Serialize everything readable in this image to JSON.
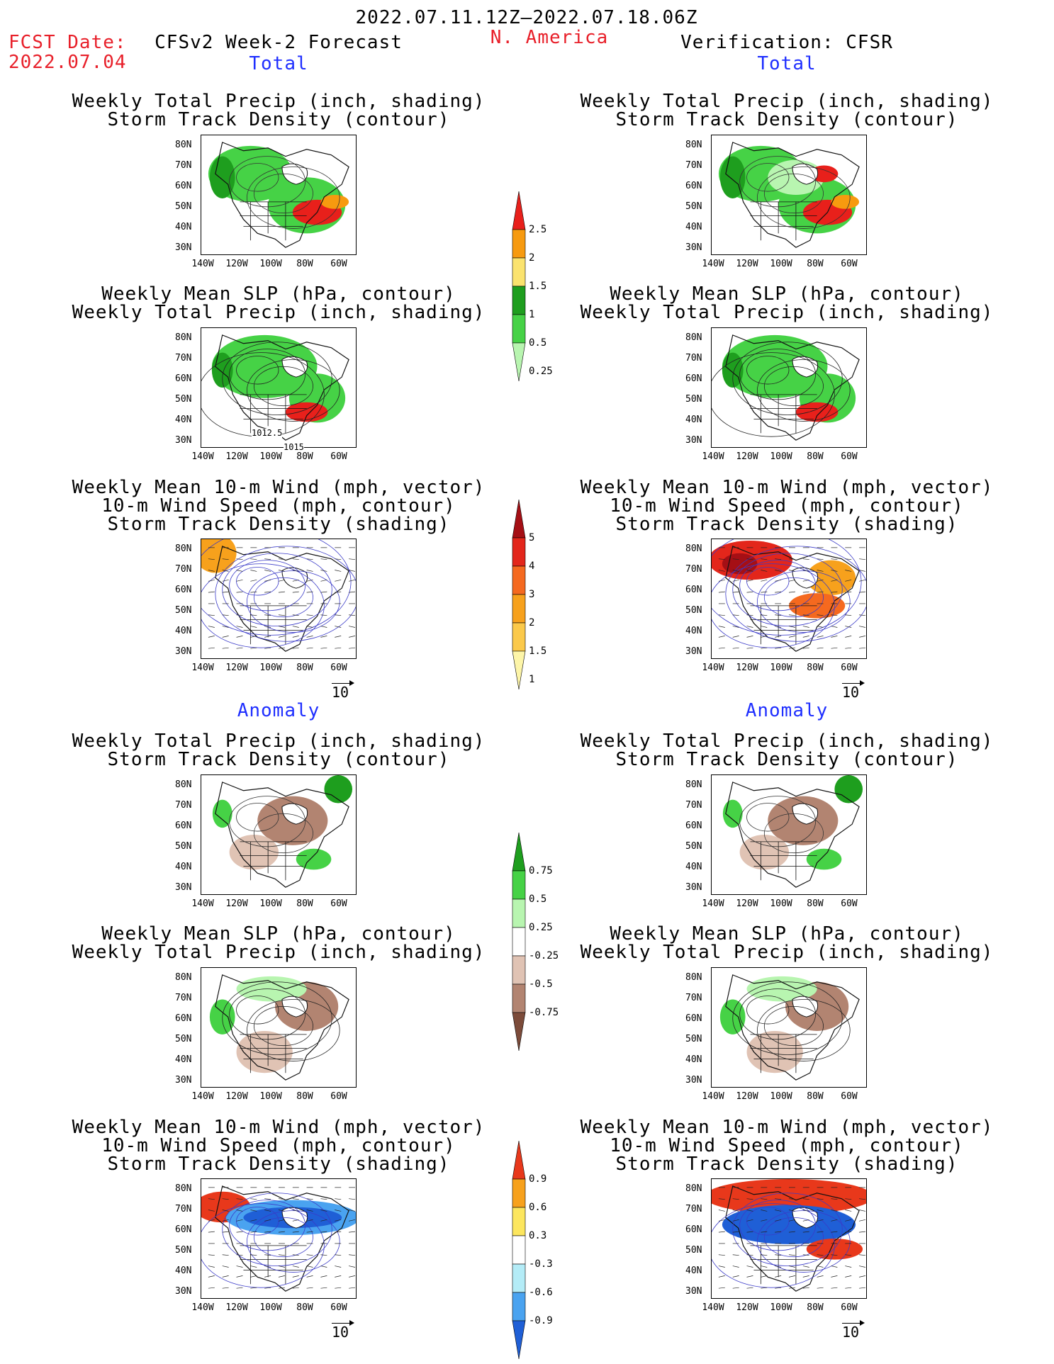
{
  "header": {
    "date_range": "2022.07.11.12Z–2022.07.18.06Z",
    "fcst_label": "FCST Date:",
    "fcst_date": "2022.07.04",
    "forecast_title": "CFSv2 Week-2 Forecast",
    "region": "N. America",
    "verification_title": "Verification: CFSR"
  },
  "sections": {
    "total": "Total",
    "anomaly": "Anomaly"
  },
  "panel_titles": {
    "precip_storm": [
      "Weekly Total Precip (inch, shading)",
      "Storm Track Density (contour)"
    ],
    "slp_precip": [
      "Weekly Mean SLP (hPa, contour)",
      "Weekly Total Precip (inch, shading)"
    ],
    "wind_storm": [
      "Weekly Mean 10-m Wind (mph, vector)",
      "10-m Wind Speed (mph, contour)",
      "Storm Track Density (shading)"
    ]
  },
  "axes": {
    "lat_labels": [
      "80N",
      "70N",
      "60N",
      "50N",
      "40N",
      "30N"
    ],
    "lon_labels": [
      "140W",
      "120W",
      "100W",
      "80W",
      "60W"
    ]
  },
  "vector_ref": "10",
  "contour_labels": {
    "slp_1": "1012.5",
    "slp_2": "1015"
  },
  "colorbars": {
    "precip_total": {
      "labels": [
        "2.5",
        "2",
        "1.5",
        "1",
        "0.5",
        "0.25"
      ],
      "colors": [
        "#e8201b",
        "#f79a0f",
        "#fbe36e",
        "#1e9e1e",
        "#46d246",
        "#b8f5b0"
      ]
    },
    "storm_total": {
      "labels": [
        "5",
        "4",
        "3",
        "2",
        "1.5",
        "1"
      ],
      "colors": [
        "#a50f15",
        "#e3261b",
        "#f5691f",
        "#f7a11c",
        "#fbc94a",
        "#fdf5a8"
      ]
    },
    "precip_anom": {
      "labels": [
        "0.75",
        "0.5",
        "0.25",
        "-0.25",
        "-0.5",
        "-0.75"
      ],
      "colors": [
        "#1e9e1e",
        "#46d246",
        "#b8f5b0",
        "#ffffff",
        "#e0c3b4",
        "#b28471",
        "#7c4b3a"
      ]
    },
    "storm_anom": {
      "labels": [
        "0.9",
        "0.6",
        "0.3",
        "-0.3",
        "-0.6",
        "-0.9"
      ],
      "colors": [
        "#e8381b",
        "#f7a11c",
        "#fce65e",
        "#ffffff",
        "#b4ecf7",
        "#4aa3f0",
        "#1f5fd6"
      ]
    }
  }
}
